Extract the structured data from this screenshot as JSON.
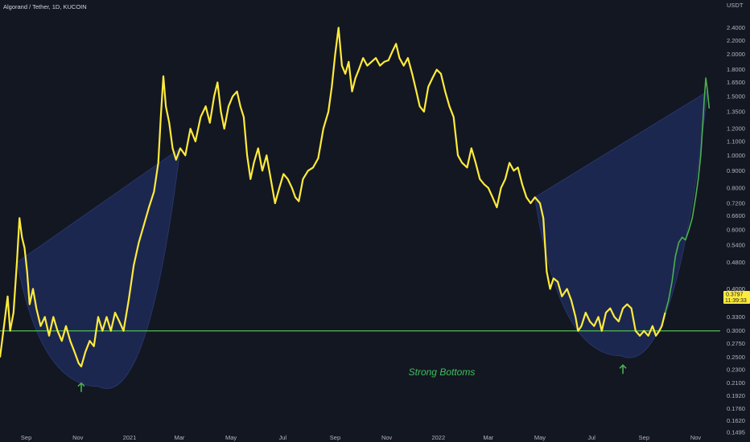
{
  "header": {
    "title": "Algorand / Tether, 1D, KUCOIN"
  },
  "axis": {
    "unit": "USDT"
  },
  "chart_data": {
    "type": "line",
    "title": "Algorand / Tether, 1D, KUCOIN",
    "ylabel": "USDT",
    "y_scale": "log",
    "ylim": [
      0.1495,
      2.6
    ],
    "yticks": [
      2.4,
      2.2,
      2.0,
      1.8,
      1.65,
      1.5,
      1.35,
      1.2,
      1.1,
      1.0,
      0.9,
      0.8,
      0.72,
      0.66,
      0.6,
      0.54,
      0.48,
      0.4,
      0.33,
      0.3,
      0.275,
      0.25,
      0.23,
      0.21,
      0.192,
      0.176,
      0.162,
      0.1495
    ],
    "ytick_labels": [
      "2.4000",
      "2.2000",
      "2.0000",
      "1.8000",
      "1.6500",
      "1.5000",
      "1.3500",
      "1.2000",
      "1.1000",
      "1.0000",
      "0.9000",
      "0.8000",
      "0.7200",
      "0.6600",
      "0.6000",
      "0.5400",
      "0.4800",
      "0.4000",
      "0.3300",
      "0.3000",
      "0.2750",
      "0.2500",
      "0.2300",
      "0.2100",
      "0.1920",
      "0.1760",
      "0.1620",
      "0.1495"
    ],
    "x_range": [
      "2020-08-01",
      "2022-11-30"
    ],
    "xtick_labels": [
      "Sep",
      "Nov",
      "2021",
      "Mar",
      "May",
      "Jul",
      "Sep",
      "Nov",
      "2022",
      "Mar",
      "May",
      "Jul",
      "Sep",
      "Nov"
    ],
    "xtick_dates": [
      "2020-09-01",
      "2020-11-01",
      "2021-01-01",
      "2021-03-01",
      "2021-05-01",
      "2021-07-01",
      "2021-09-01",
      "2021-11-01",
      "2022-01-01",
      "2022-03-01",
      "2022-05-01",
      "2022-07-01",
      "2022-09-01",
      "2022-11-01"
    ],
    "series": [
      {
        "color": "#ffeb3b",
        "points": [
          [
            "2020-08-01",
            0.25
          ],
          [
            "2020-08-05",
            0.3
          ],
          [
            "2020-08-10",
            0.38
          ],
          [
            "2020-08-13",
            0.3
          ],
          [
            "2020-08-17",
            0.34
          ],
          [
            "2020-08-21",
            0.48
          ],
          [
            "2020-08-24",
            0.65
          ],
          [
            "2020-08-27",
            0.57
          ],
          [
            "2020-08-30",
            0.53
          ],
          [
            "2020-09-02",
            0.45
          ],
          [
            "2020-09-05",
            0.36
          ],
          [
            "2020-09-09",
            0.4
          ],
          [
            "2020-09-13",
            0.35
          ],
          [
            "2020-09-18",
            0.31
          ],
          [
            "2020-09-23",
            0.33
          ],
          [
            "2020-09-28",
            0.29
          ],
          [
            "2020-10-03",
            0.33
          ],
          [
            "2020-10-08",
            0.3
          ],
          [
            "2020-10-13",
            0.28
          ],
          [
            "2020-10-18",
            0.31
          ],
          [
            "2020-10-23",
            0.28
          ],
          [
            "2020-10-28",
            0.26
          ],
          [
            "2020-11-02",
            0.24
          ],
          [
            "2020-11-05",
            0.235
          ],
          [
            "2020-11-10",
            0.26
          ],
          [
            "2020-11-15",
            0.28
          ],
          [
            "2020-11-20",
            0.27
          ],
          [
            "2020-11-25",
            0.33
          ],
          [
            "2020-11-30",
            0.3
          ],
          [
            "2020-12-05",
            0.33
          ],
          [
            "2020-12-10",
            0.3
          ],
          [
            "2020-12-15",
            0.34
          ],
          [
            "2020-12-20",
            0.32
          ],
          [
            "2020-12-25",
            0.3
          ],
          [
            "2020-12-31",
            0.37
          ],
          [
            "2021-01-06",
            0.47
          ],
          [
            "2021-01-12",
            0.55
          ],
          [
            "2021-01-18",
            0.62
          ],
          [
            "2021-01-24",
            0.7
          ],
          [
            "2021-01-30",
            0.78
          ],
          [
            "2021-02-04",
            0.95
          ],
          [
            "2021-02-07",
            1.3
          ],
          [
            "2021-02-10",
            1.72
          ],
          [
            "2021-02-13",
            1.4
          ],
          [
            "2021-02-17",
            1.25
          ],
          [
            "2021-02-21",
            1.05
          ],
          [
            "2021-02-25",
            0.97
          ],
          [
            "2021-03-02",
            1.05
          ],
          [
            "2021-03-08",
            1.0
          ],
          [
            "2021-03-14",
            1.2
          ],
          [
            "2021-03-20",
            1.1
          ],
          [
            "2021-03-26",
            1.3
          ],
          [
            "2021-04-01",
            1.4
          ],
          [
            "2021-04-06",
            1.25
          ],
          [
            "2021-04-11",
            1.5
          ],
          [
            "2021-04-15",
            1.65
          ],
          [
            "2021-04-19",
            1.35
          ],
          [
            "2021-04-23",
            1.2
          ],
          [
            "2021-04-28",
            1.4
          ],
          [
            "2021-05-03",
            1.5
          ],
          [
            "2021-05-08",
            1.55
          ],
          [
            "2021-05-12",
            1.4
          ],
          [
            "2021-05-16",
            1.3
          ],
          [
            "2021-05-20",
            1.0
          ],
          [
            "2021-05-24",
            0.85
          ],
          [
            "2021-05-28",
            0.95
          ],
          [
            "2021-06-02",
            1.05
          ],
          [
            "2021-06-07",
            0.9
          ],
          [
            "2021-06-12",
            1.0
          ],
          [
            "2021-06-17",
            0.85
          ],
          [
            "2021-06-22",
            0.72
          ],
          [
            "2021-06-27",
            0.8
          ],
          [
            "2021-07-02",
            0.88
          ],
          [
            "2021-07-07",
            0.85
          ],
          [
            "2021-07-12",
            0.8
          ],
          [
            "2021-07-16",
            0.75
          ],
          [
            "2021-07-20",
            0.73
          ],
          [
            "2021-07-25",
            0.85
          ],
          [
            "2021-07-31",
            0.9
          ],
          [
            "2021-08-06",
            0.92
          ],
          [
            "2021-08-12",
            0.98
          ],
          [
            "2021-08-18",
            1.2
          ],
          [
            "2021-08-24",
            1.35
          ],
          [
            "2021-08-28",
            1.6
          ],
          [
            "2021-09-01",
            2.0
          ],
          [
            "2021-09-05",
            2.4
          ],
          [
            "2021-09-09",
            1.85
          ],
          [
            "2021-09-13",
            1.75
          ],
          [
            "2021-09-17",
            1.9
          ],
          [
            "2021-09-21",
            1.55
          ],
          [
            "2021-09-25",
            1.7
          ],
          [
            "2021-09-29",
            1.8
          ],
          [
            "2021-10-04",
            1.95
          ],
          [
            "2021-10-09",
            1.85
          ],
          [
            "2021-10-14",
            1.9
          ],
          [
            "2021-10-19",
            1.95
          ],
          [
            "2021-10-24",
            1.85
          ],
          [
            "2021-10-29",
            1.9
          ],
          [
            "2021-11-03",
            1.92
          ],
          [
            "2021-11-08",
            2.05
          ],
          [
            "2021-11-12",
            2.15
          ],
          [
            "2021-11-16",
            1.95
          ],
          [
            "2021-11-21",
            1.85
          ],
          [
            "2021-11-26",
            1.95
          ],
          [
            "2021-12-01",
            1.75
          ],
          [
            "2021-12-06",
            1.55
          ],
          [
            "2021-12-10",
            1.4
          ],
          [
            "2021-12-15",
            1.35
          ],
          [
            "2021-12-20",
            1.6
          ],
          [
            "2021-12-25",
            1.7
          ],
          [
            "2021-12-30",
            1.8
          ],
          [
            "2022-01-04",
            1.75
          ],
          [
            "2022-01-09",
            1.55
          ],
          [
            "2022-01-14",
            1.4
          ],
          [
            "2022-01-19",
            1.3
          ],
          [
            "2022-01-24",
            1.0
          ],
          [
            "2022-01-29",
            0.95
          ],
          [
            "2022-02-04",
            0.92
          ],
          [
            "2022-02-09",
            1.05
          ],
          [
            "2022-02-14",
            0.95
          ],
          [
            "2022-02-19",
            0.85
          ],
          [
            "2022-02-24",
            0.82
          ],
          [
            "2022-03-01",
            0.8
          ],
          [
            "2022-03-06",
            0.75
          ],
          [
            "2022-03-11",
            0.7
          ],
          [
            "2022-03-16",
            0.8
          ],
          [
            "2022-03-21",
            0.85
          ],
          [
            "2022-03-26",
            0.95
          ],
          [
            "2022-03-31",
            0.9
          ],
          [
            "2022-04-05",
            0.92
          ],
          [
            "2022-04-10",
            0.82
          ],
          [
            "2022-04-15",
            0.75
          ],
          [
            "2022-04-20",
            0.72
          ],
          [
            "2022-04-25",
            0.75
          ],
          [
            "2022-05-01",
            0.72
          ],
          [
            "2022-05-05",
            0.65
          ],
          [
            "2022-05-09",
            0.45
          ],
          [
            "2022-05-13",
            0.4
          ],
          [
            "2022-05-17",
            0.43
          ],
          [
            "2022-05-22",
            0.42
          ],
          [
            "2022-05-27",
            0.38
          ],
          [
            "2022-06-02",
            0.4
          ],
          [
            "2022-06-07",
            0.37
          ],
          [
            "2022-06-12",
            0.33
          ],
          [
            "2022-06-15",
            0.3
          ],
          [
            "2022-06-19",
            0.31
          ],
          [
            "2022-06-24",
            0.34
          ],
          [
            "2022-06-29",
            0.32
          ],
          [
            "2022-07-04",
            0.31
          ],
          [
            "2022-07-09",
            0.33
          ],
          [
            "2022-07-13",
            0.3
          ],
          [
            "2022-07-18",
            0.34
          ],
          [
            "2022-07-23",
            0.35
          ],
          [
            "2022-07-28",
            0.33
          ],
          [
            "2022-08-02",
            0.32
          ],
          [
            "2022-08-07",
            0.35
          ],
          [
            "2022-08-12",
            0.36
          ],
          [
            "2022-08-17",
            0.35
          ],
          [
            "2022-08-22",
            0.3
          ],
          [
            "2022-08-27",
            0.29
          ],
          [
            "2022-09-01",
            0.3
          ],
          [
            "2022-09-06",
            0.29
          ],
          [
            "2022-09-11",
            0.31
          ],
          [
            "2022-09-15",
            0.29
          ],
          [
            "2022-09-19",
            0.3
          ],
          [
            "2022-09-22",
            0.31
          ],
          [
            "2022-09-26",
            0.34
          ]
        ]
      },
      {
        "color": "#4caf50",
        "points": [
          [
            "2022-09-26",
            0.34
          ],
          [
            "2022-09-30",
            0.37
          ],
          [
            "2022-10-04",
            0.42
          ],
          [
            "2022-10-08",
            0.5
          ],
          [
            "2022-10-12",
            0.55
          ],
          [
            "2022-10-16",
            0.57
          ],
          [
            "2022-10-20",
            0.56
          ],
          [
            "2022-10-24",
            0.6
          ],
          [
            "2022-10-28",
            0.65
          ],
          [
            "2022-11-01",
            0.75
          ],
          [
            "2022-11-04",
            0.85
          ],
          [
            "2022-11-07",
            1.0
          ],
          [
            "2022-11-09",
            1.2
          ],
          [
            "2022-11-11",
            1.45
          ],
          [
            "2022-11-13",
            1.7
          ],
          [
            "2022-11-15",
            1.55
          ],
          [
            "2022-11-17",
            1.38
          ]
        ]
      }
    ],
    "last_price": "0.3797",
    "last_time": "11:39:33",
    "last_color": "#ffeb3b",
    "support_level": 0.3,
    "support_color": "#4caf50",
    "annotations": [
      {
        "text": "Strong Bottoms",
        "date": "2022-01-05",
        "value": 0.221,
        "color": "#3fbf5a"
      }
    ],
    "arrows": [
      {
        "date": "2020-11-05",
        "value": 0.205,
        "color": "#4caf50"
      },
      {
        "date": "2022-08-07",
        "value": 0.232,
        "color": "#4caf50"
      }
    ],
    "highlight_shapes": [
      {
        "from": "2020-08-18",
        "to": "2021-03-02",
        "color": "#1e2a57"
      },
      {
        "from": "2022-04-25",
        "to": "2022-11-16",
        "color": "#1e2a57"
      }
    ]
  }
}
